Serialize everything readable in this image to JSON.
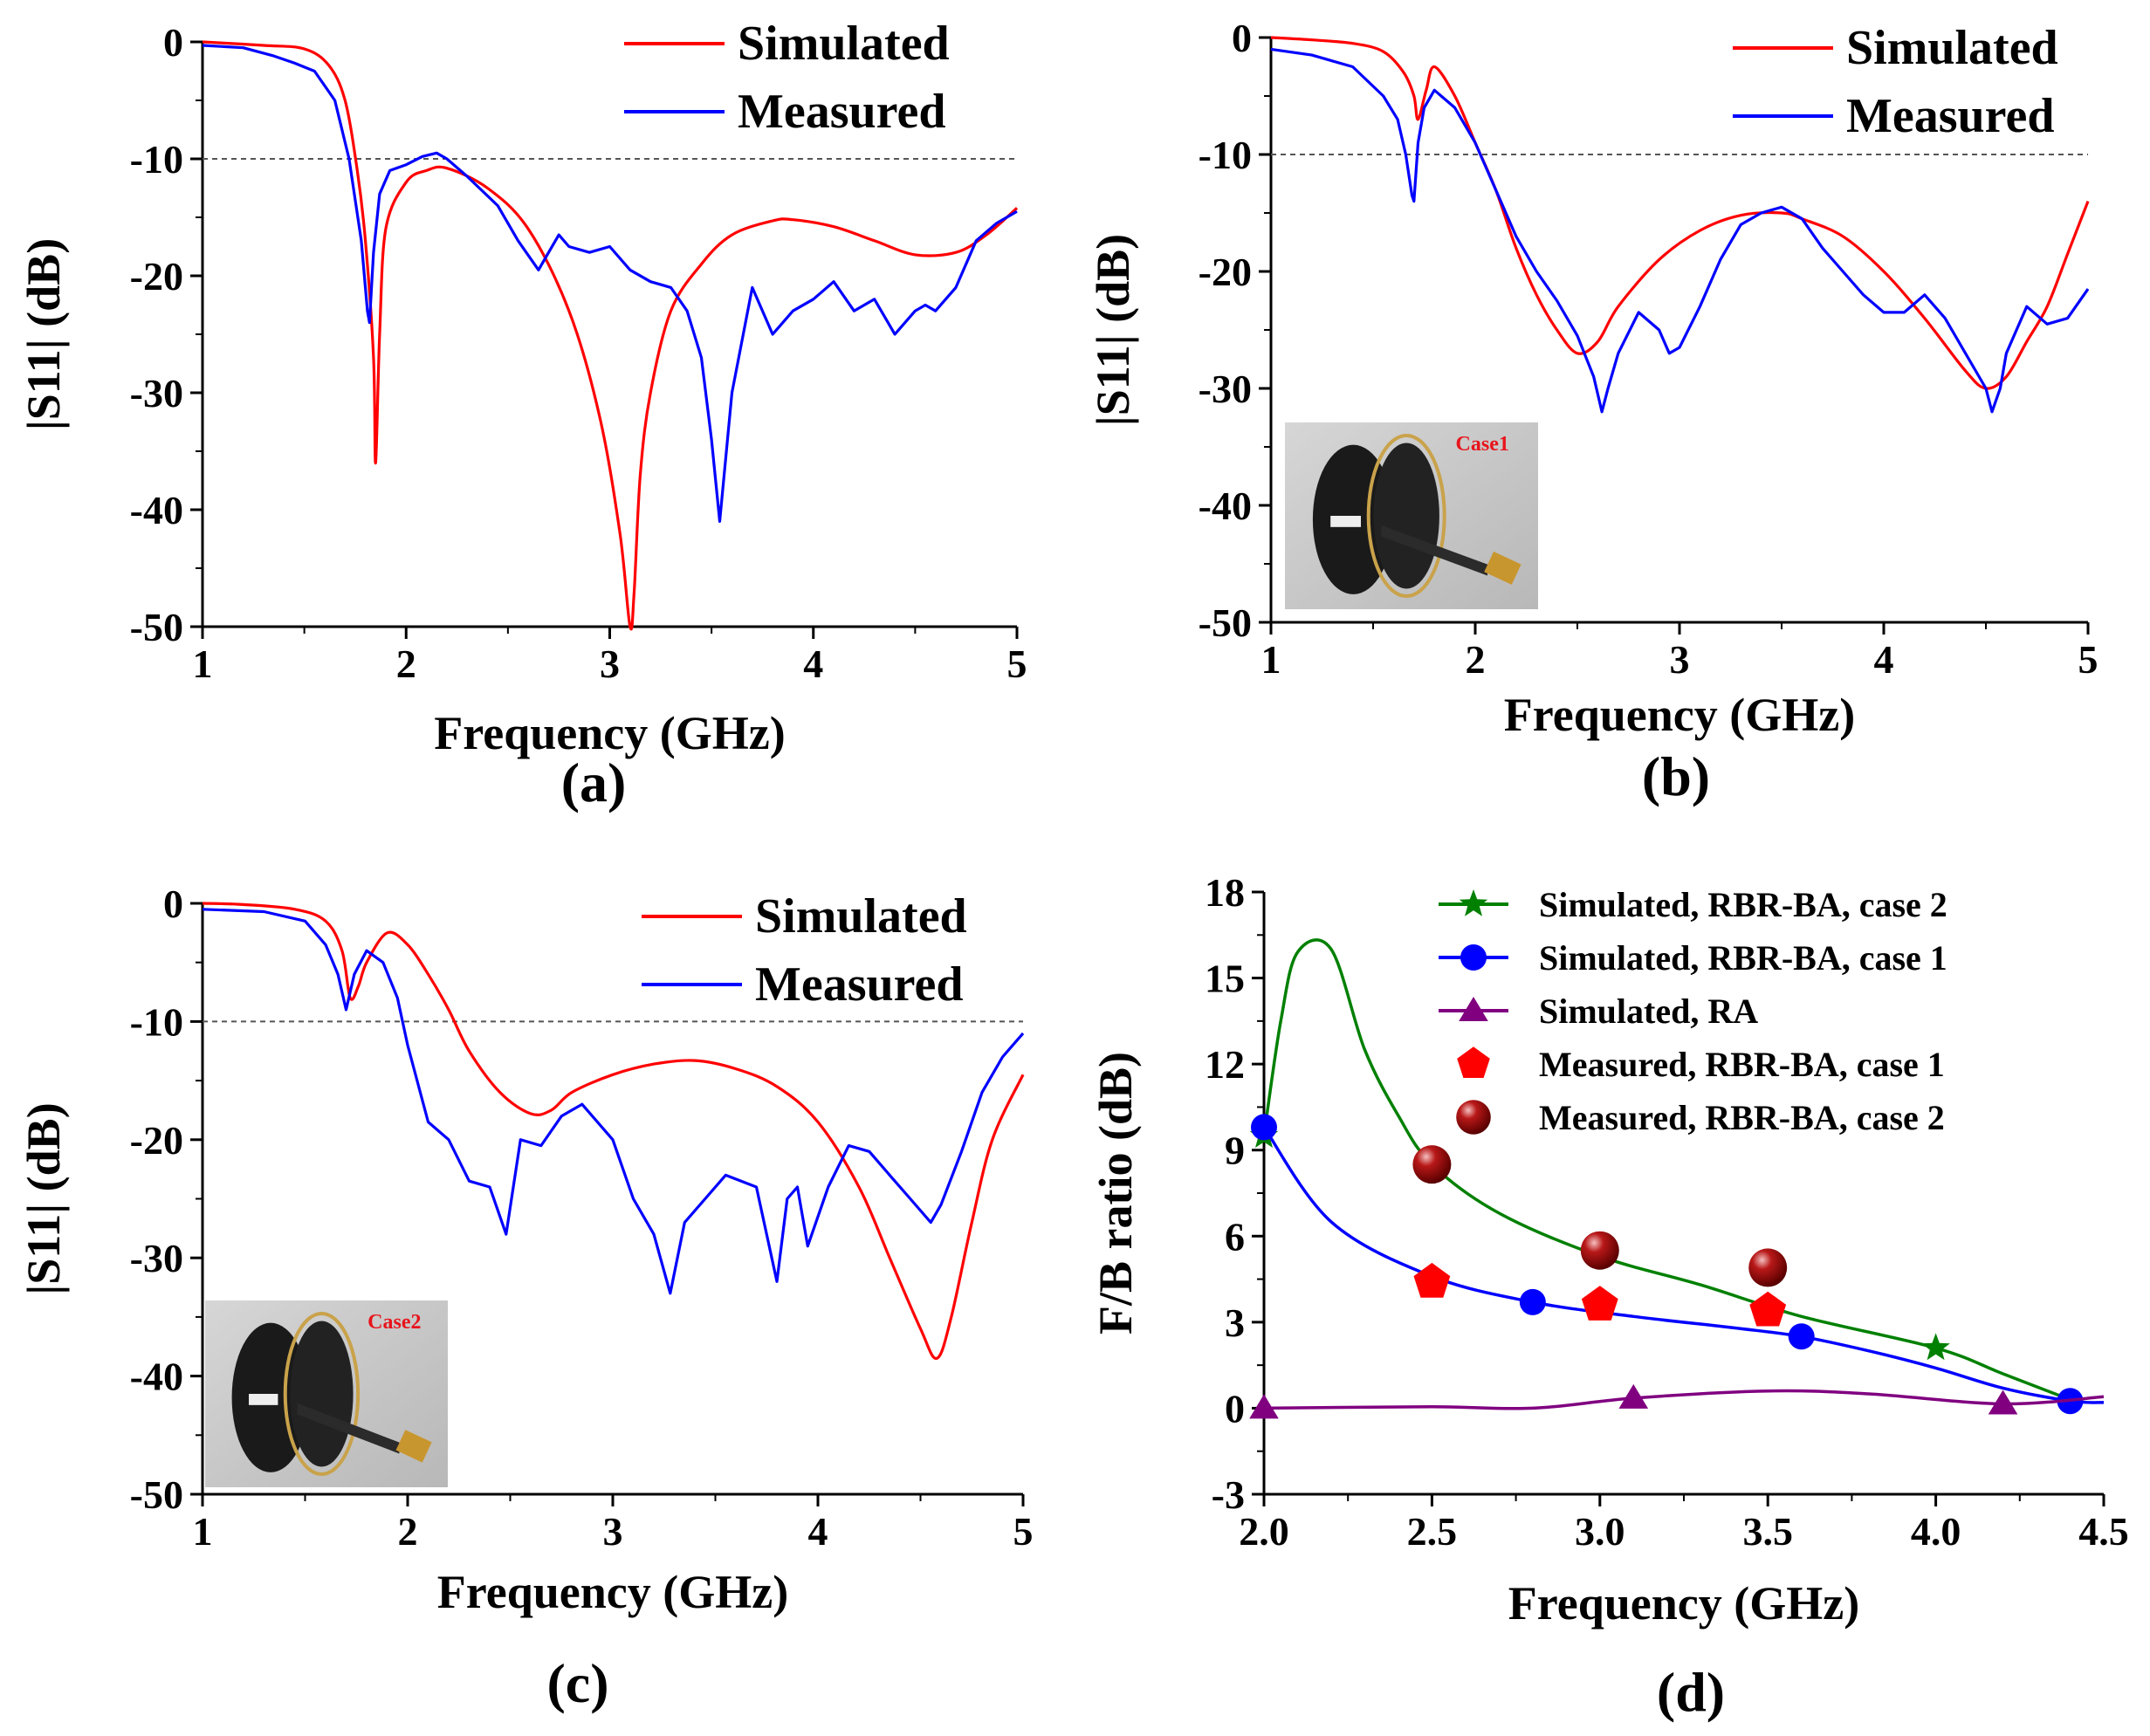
{
  "figure": {
    "panels": [
      "(a)",
      "(b)",
      "(c)",
      "(d)"
    ]
  },
  "chart_data": [
    {
      "id": "a",
      "type": "line",
      "panel_label": "(a)",
      "xlabel": "Frequency (GHz)",
      "ylabel": "|S11| (dB)",
      "xlim": [
        1,
        5
      ],
      "ylim": [
        -50,
        0
      ],
      "xticks": [
        1,
        2,
        3,
        4,
        5
      ],
      "yticks": [
        0,
        -10,
        -20,
        -30,
        -40,
        -50
      ],
      "reference_line": -10,
      "legend": [
        "Simulated",
        "Measured"
      ],
      "series": [
        {
          "name": "Simulated",
          "color": "#ff0000",
          "x": [
            1.0,
            1.3,
            1.5,
            1.62,
            1.7,
            1.76,
            1.8,
            1.84,
            1.85,
            1.87,
            1.9,
            2.0,
            2.1,
            2.2,
            2.4,
            2.6,
            2.8,
            2.95,
            3.05,
            3.1,
            3.12,
            3.15,
            3.2,
            3.3,
            3.45,
            3.6,
            3.8,
            3.9,
            4.1,
            4.3,
            4.5,
            4.7,
            4.85,
            5.0
          ],
          "y": [
            0,
            -0.3,
            -0.6,
            -2,
            -5,
            -11,
            -17,
            -27,
            -36,
            -25,
            -16,
            -12,
            -11,
            -10.8,
            -12.5,
            -16,
            -23,
            -32,
            -42,
            -50,
            -47,
            -37,
            -30,
            -23,
            -19,
            -16.5,
            -15.3,
            -15.2,
            -15.8,
            -17,
            -18.2,
            -18,
            -16.5,
            -14.2
          ]
        },
        {
          "name": "Measured",
          "color": "#0000ff",
          "x": [
            1.0,
            1.2,
            1.35,
            1.45,
            1.55,
            1.65,
            1.72,
            1.78,
            1.81,
            1.82,
            1.84,
            1.87,
            1.92,
            2.0,
            2.08,
            2.15,
            2.2,
            2.3,
            2.45,
            2.55,
            2.65,
            2.7,
            2.75,
            2.8,
            2.9,
            3.0,
            3.1,
            3.2,
            3.3,
            3.38,
            3.45,
            3.5,
            3.54,
            3.6,
            3.7,
            3.8,
            3.9,
            4.0,
            4.1,
            4.2,
            4.3,
            4.4,
            4.5,
            4.55,
            4.6,
            4.7,
            4.8,
            4.9,
            5.0
          ],
          "y": [
            -0.3,
            -0.5,
            -1.2,
            -1.8,
            -2.5,
            -5,
            -10,
            -17,
            -23,
            -24,
            -18,
            -13,
            -11,
            -10.5,
            -9.8,
            -9.5,
            -10,
            -11.5,
            -14,
            -17,
            -19.5,
            -18,
            -16.5,
            -17.5,
            -18,
            -17.5,
            -19.5,
            -20.5,
            -21,
            -23,
            -27,
            -34,
            -41,
            -30,
            -21,
            -25,
            -23,
            -22,
            -20.5,
            -23,
            -22,
            -25,
            -23,
            -22.5,
            -23,
            -21,
            -17,
            -15.5,
            -14.5
          ]
        }
      ]
    },
    {
      "id": "b",
      "type": "line",
      "panel_label": "(b)",
      "xlabel": "Frequency (GHz)",
      "ylabel": "|S11| (dB)",
      "xlim": [
        1,
        5
      ],
      "ylim": [
        -50,
        0
      ],
      "xticks": [
        1,
        2,
        3,
        4,
        5
      ],
      "yticks": [
        0,
        -10,
        -20,
        -30,
        -40,
        -50
      ],
      "reference_line": -10,
      "legend": [
        "Simulated",
        "Measured"
      ],
      "inset_label": "Case1",
      "series": [
        {
          "name": "Simulated",
          "color": "#ff0000",
          "x": [
            1.0,
            1.2,
            1.4,
            1.55,
            1.65,
            1.7,
            1.72,
            1.76,
            1.8,
            1.9,
            2.0,
            2.1,
            2.2,
            2.3,
            2.4,
            2.5,
            2.6,
            2.7,
            2.9,
            3.1,
            3.3,
            3.5,
            3.6,
            3.8,
            4.0,
            4.2,
            4.4,
            4.5,
            4.6,
            4.7,
            4.8,
            4.9,
            5.0
          ],
          "y": [
            0,
            -0.2,
            -0.5,
            -1.2,
            -3,
            -5,
            -7,
            -4.5,
            -2.5,
            -5,
            -9,
            -13,
            -18,
            -22,
            -25,
            -27,
            -26,
            -23,
            -19,
            -16.5,
            -15.2,
            -15,
            -15.5,
            -17,
            -20,
            -24,
            -28.5,
            -30,
            -29,
            -26,
            -23,
            -18.5,
            -14
          ]
        },
        {
          "name": "Measured",
          "color": "#0000ff",
          "x": [
            1.0,
            1.2,
            1.4,
            1.55,
            1.62,
            1.66,
            1.69,
            1.7,
            1.72,
            1.75,
            1.8,
            1.9,
            2.0,
            2.1,
            2.2,
            2.3,
            2.4,
            2.5,
            2.58,
            2.62,
            2.65,
            2.7,
            2.8,
            2.9,
            2.95,
            3.0,
            3.1,
            3.2,
            3.3,
            3.4,
            3.5,
            3.6,
            3.7,
            3.8,
            3.9,
            4.0,
            4.1,
            4.2,
            4.3,
            4.4,
            4.5,
            4.53,
            4.57,
            4.6,
            4.7,
            4.8,
            4.9,
            5.0
          ],
          "y": [
            -1,
            -1.5,
            -2.5,
            -5,
            -7,
            -10,
            -13.5,
            -14,
            -9,
            -6,
            -4.5,
            -6,
            -9,
            -13,
            -17,
            -20,
            -22.5,
            -25.5,
            -29,
            -32,
            -30,
            -27,
            -23.5,
            -25,
            -27,
            -26.5,
            -23,
            -19,
            -16,
            -15,
            -14.5,
            -15.5,
            -18,
            -20,
            -22,
            -23.5,
            -23.5,
            -22,
            -24,
            -27,
            -30,
            -32,
            -30,
            -27,
            -23,
            -24.5,
            -24,
            -21.5
          ]
        }
      ]
    },
    {
      "id": "c",
      "type": "line",
      "panel_label": "(c)",
      "xlabel": "Frequency (GHz)",
      "ylabel": "|S11| (dB)",
      "xlim": [
        1,
        5
      ],
      "ylim": [
        -50,
        0
      ],
      "xticks": [
        1,
        2,
        3,
        4,
        5
      ],
      "yticks": [
        0,
        -10,
        -20,
        -30,
        -40,
        -50
      ],
      "reference_line": -10,
      "legend": [
        "Simulated",
        "Measured"
      ],
      "inset_label": "Case2",
      "series": [
        {
          "name": "Simulated",
          "color": "#ff0000",
          "x": [
            1.0,
            1.2,
            1.45,
            1.6,
            1.68,
            1.72,
            1.76,
            1.8,
            1.9,
            2.0,
            2.1,
            2.2,
            2.3,
            2.45,
            2.6,
            2.7,
            2.8,
            3.0,
            3.2,
            3.4,
            3.6,
            3.8,
            4.0,
            4.2,
            4.35,
            4.5,
            4.58,
            4.65,
            4.75,
            4.85,
            5.0
          ],
          "y": [
            0,
            -0.1,
            -0.5,
            -1.5,
            -4,
            -8,
            -7,
            -5,
            -2.5,
            -3.5,
            -6,
            -9,
            -12.5,
            -16,
            -17.8,
            -17.5,
            -16,
            -14.5,
            -13.6,
            -13.3,
            -14,
            -15.5,
            -18.5,
            -24,
            -30,
            -36,
            -38.5,
            -35,
            -27,
            -20,
            -14.5
          ]
        },
        {
          "name": "Measured",
          "color": "#0000ff",
          "x": [
            1.0,
            1.3,
            1.5,
            1.6,
            1.66,
            1.7,
            1.74,
            1.8,
            1.88,
            1.95,
            2.0,
            2.1,
            2.2,
            2.3,
            2.4,
            2.48,
            2.55,
            2.65,
            2.75,
            2.85,
            3.0,
            3.1,
            3.2,
            3.28,
            3.35,
            3.45,
            3.55,
            3.7,
            3.8,
            3.85,
            3.9,
            3.95,
            4.05,
            4.15,
            4.25,
            4.35,
            4.45,
            4.5,
            4.55,
            4.6,
            4.7,
            4.8,
            4.9,
            5.0
          ],
          "y": [
            -0.5,
            -0.7,
            -1.5,
            -3.5,
            -6,
            -9,
            -6,
            -4,
            -5,
            -8,
            -12,
            -18.5,
            -20,
            -23.5,
            -24,
            -28,
            -20,
            -20.5,
            -18,
            -17,
            -20,
            -25,
            -28,
            -33,
            -27,
            -25,
            -23,
            -24,
            -32,
            -25,
            -24,
            -29,
            -24,
            -20.5,
            -21,
            -23,
            -25,
            -26,
            -27,
            -25.5,
            -21,
            -16,
            -13,
            -11
          ]
        }
      ]
    },
    {
      "id": "d",
      "type": "line",
      "panel_label": "(d)",
      "xlabel": "Frequency (GHz)",
      "ylabel": "F/B ratio (dB)",
      "xlim": [
        2.0,
        4.5
      ],
      "ylim": [
        -3,
        18
      ],
      "xticks": [
        "2.0",
        "2.5",
        "3.0",
        "3.5",
        "4.0",
        "4.5"
      ],
      "yticks": [
        "18",
        "15",
        "12",
        "9",
        "6",
        "3",
        "0",
        "-3"
      ],
      "legend": [
        "Simulated, RBR-BA, case 2",
        "Simulated, RBR-BA, case 1",
        "Simulated, RA",
        "Measured, RBR-BA, case 1",
        "Measured, RBR-BA, case 2"
      ],
      "series": [
        {
          "name": "Simulated, RBR-BA, case 2",
          "color": "#008000",
          "marker": "star",
          "x": [
            2.0,
            2.05,
            2.1,
            2.2,
            2.3,
            2.4,
            2.5,
            2.7,
            3.0,
            3.3,
            3.6,
            4.0,
            4.2,
            4.4
          ],
          "y": [
            9.5,
            13.5,
            15.9,
            16.0,
            12.5,
            10.2,
            8.5,
            6.8,
            5.3,
            4.3,
            3.2,
            2.1,
            1.2,
            0.3
          ],
          "marker_x": [
            2.0,
            4.0
          ],
          "marker_y": [
            9.5,
            2.1
          ]
        },
        {
          "name": "Simulated, RBR-BA, case 1",
          "color": "#0000ff",
          "marker": "circle",
          "x": [
            2.0,
            2.2,
            2.5,
            2.8,
            3.1,
            3.4,
            3.6,
            3.8,
            4.0,
            4.2,
            4.4,
            4.5
          ],
          "y": [
            9.8,
            6.5,
            4.6,
            3.7,
            3.2,
            2.8,
            2.5,
            2.0,
            1.4,
            0.7,
            0.25,
            0.2
          ],
          "marker_x": [
            2.0,
            2.8,
            3.6,
            4.4
          ],
          "marker_y": [
            9.8,
            3.7,
            2.5,
            0.25
          ]
        },
        {
          "name": "Simulated, RA",
          "color": "#800080",
          "marker": "triangle",
          "x": [
            2.0,
            2.5,
            2.8,
            3.1,
            3.5,
            3.8,
            4.2,
            4.5
          ],
          "y": [
            0.0,
            0.05,
            0.0,
            0.35,
            0.6,
            0.5,
            0.15,
            0.4
          ],
          "marker_x": [
            2.0,
            3.1,
            4.2
          ],
          "marker_y": [
            0.0,
            0.35,
            0.15
          ]
        },
        {
          "name": "Measured, RBR-BA, case 1",
          "color": "#ff0000",
          "marker": "pentagon",
          "x": [
            2.5,
            3.0,
            3.5
          ],
          "y": [
            4.4,
            3.6,
            3.4
          ]
        },
        {
          "name": "Measured, RBR-BA, case 2",
          "color": "#8b0000",
          "marker": "sphere",
          "x": [
            2.5,
            3.0,
            3.5
          ],
          "y": [
            8.5,
            5.5,
            4.9
          ]
        }
      ]
    }
  ]
}
